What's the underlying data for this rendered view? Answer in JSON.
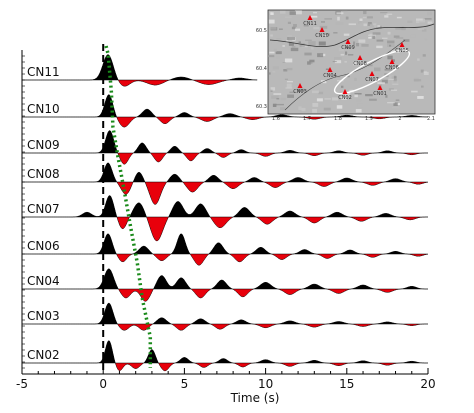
{
  "chart_data": {
    "type": "line",
    "xlabel": "Time (s)",
    "xlim": [
      -5,
      20
    ],
    "xticks": [
      -5,
      0,
      5,
      10,
      15,
      20
    ],
    "colors": {
      "positive": "#000000",
      "negative": "#e8000b",
      "s_pick": "#1a8a1a",
      "p_pick": "#000000"
    },
    "p_pick_time": 0,
    "traces": [
      {
        "station": "CN11",
        "end": 9.5,
        "amp": 0.85,
        "s_time": 0.3,
        "peaks": [
          [
            0.3,
            1.0,
            0.45
          ],
          [
            1.3,
            -0.25,
            0.5
          ],
          [
            3.2,
            -0.2,
            0.7
          ],
          [
            4.8,
            0.12,
            0.7
          ],
          [
            6.5,
            -0.18,
            0.8
          ],
          [
            8.4,
            0.08,
            0.6
          ]
        ]
      },
      {
        "station": "CN10",
        "end": 20,
        "amp": 0.75,
        "s_time": 0.5,
        "peaks": [
          [
            0.35,
            1.0,
            0.35
          ],
          [
            1.3,
            -0.45,
            0.45
          ],
          [
            2.7,
            0.35,
            0.4
          ],
          [
            3.8,
            -0.3,
            0.4
          ],
          [
            5.0,
            0.2,
            0.4
          ],
          [
            6.4,
            -0.2,
            0.5
          ],
          [
            7.8,
            0.15,
            0.5
          ],
          [
            9.2,
            -0.12,
            0.5
          ],
          [
            11.0,
            0.1,
            0.5
          ],
          [
            13.0,
            -0.1,
            0.5
          ],
          [
            15.0,
            0.08,
            0.5
          ],
          [
            17.0,
            -0.08,
            0.5
          ],
          [
            19.0,
            0.07,
            0.5
          ]
        ]
      },
      {
        "station": "CN09",
        "end": 20,
        "amp": 0.75,
        "s_time": 0.6,
        "peaks": [
          [
            0.4,
            1.0,
            0.35
          ],
          [
            1.3,
            -0.5,
            0.35
          ],
          [
            2.4,
            0.45,
            0.35
          ],
          [
            3.4,
            -0.4,
            0.35
          ],
          [
            4.4,
            0.3,
            0.35
          ],
          [
            5.4,
            -0.35,
            0.35
          ],
          [
            6.4,
            0.2,
            0.35
          ],
          [
            7.4,
            -0.2,
            0.35
          ],
          [
            8.5,
            0.15,
            0.35
          ],
          [
            10.0,
            -0.15,
            0.4
          ],
          [
            11.5,
            0.12,
            0.4
          ],
          [
            13.0,
            -0.12,
            0.4
          ],
          [
            14.5,
            0.1,
            0.4
          ],
          [
            16.0,
            -0.1,
            0.4
          ],
          [
            17.5,
            0.1,
            0.4
          ],
          [
            19.0,
            -0.08,
            0.4
          ]
        ]
      },
      {
        "station": "CN08",
        "end": 20,
        "amp": 0.75,
        "s_time": 0.9,
        "peaks": [
          [
            0.3,
            0.85,
            0.35
          ],
          [
            1.4,
            -0.55,
            0.4
          ],
          [
            2.2,
            0.45,
            0.35
          ],
          [
            3.2,
            -1.0,
            0.45
          ],
          [
            4.4,
            0.35,
            0.4
          ],
          [
            5.5,
            -0.45,
            0.45
          ],
          [
            6.8,
            0.3,
            0.4
          ],
          [
            8.0,
            -0.3,
            0.45
          ],
          [
            9.3,
            0.2,
            0.4
          ],
          [
            10.6,
            -0.25,
            0.45
          ],
          [
            12.0,
            0.2,
            0.45
          ],
          [
            13.6,
            -0.2,
            0.45
          ],
          [
            15.0,
            0.18,
            0.45
          ],
          [
            16.6,
            -0.15,
            0.45
          ],
          [
            18.0,
            0.15,
            0.45
          ],
          [
            19.4,
            -0.1,
            0.4
          ]
        ]
      },
      {
        "station": "CN07",
        "end": 20,
        "amp": 0.8,
        "s_time": 1.3,
        "peaks": [
          [
            -1.0,
            0.2,
            0.4
          ],
          [
            0.4,
            0.9,
            0.35
          ],
          [
            1.2,
            -0.5,
            0.35
          ],
          [
            2.2,
            0.6,
            0.45
          ],
          [
            3.3,
            -1.0,
            0.5
          ],
          [
            4.6,
            0.65,
            0.45
          ],
          [
            6.0,
            0.55,
            0.45
          ],
          [
            7.2,
            -0.45,
            0.5
          ],
          [
            8.7,
            0.4,
            0.45
          ],
          [
            10.1,
            -0.3,
            0.45
          ],
          [
            11.5,
            0.25,
            0.45
          ],
          [
            13.0,
            -0.25,
            0.45
          ],
          [
            14.4,
            0.2,
            0.45
          ],
          [
            15.9,
            -0.18,
            0.45
          ],
          [
            17.4,
            0.15,
            0.45
          ],
          [
            18.9,
            -0.12,
            0.45
          ]
        ]
      },
      {
        "station": "CN06",
        "end": 20,
        "amp": 0.75,
        "s_time": 1.7,
        "peaks": [
          [
            0.3,
            0.9,
            0.35
          ],
          [
            1.2,
            -0.35,
            0.35
          ],
          [
            2.5,
            0.35,
            0.4
          ],
          [
            3.6,
            -0.3,
            0.4
          ],
          [
            4.8,
            0.9,
            0.35
          ],
          [
            5.9,
            -0.5,
            0.4
          ],
          [
            7.1,
            0.5,
            0.4
          ],
          [
            8.4,
            -0.35,
            0.4
          ],
          [
            9.7,
            0.3,
            0.4
          ],
          [
            11.0,
            -0.25,
            0.4
          ],
          [
            12.4,
            0.2,
            0.4
          ],
          [
            13.8,
            -0.2,
            0.4
          ],
          [
            15.2,
            0.18,
            0.4
          ],
          [
            16.6,
            -0.15,
            0.4
          ],
          [
            18.0,
            0.12,
            0.4
          ],
          [
            19.4,
            -0.1,
            0.4
          ]
        ]
      },
      {
        "station": "CN04",
        "end": 20,
        "amp": 0.75,
        "s_time": 2.1,
        "peaks": [
          [
            0.35,
            0.9,
            0.4
          ],
          [
            1.4,
            -0.4,
            0.4
          ],
          [
            2.6,
            -0.55,
            0.4
          ],
          [
            3.6,
            0.6,
            0.4
          ],
          [
            4.8,
            0.5,
            0.4
          ],
          [
            6.0,
            -0.4,
            0.4
          ],
          [
            7.3,
            0.4,
            0.4
          ],
          [
            8.6,
            -0.35,
            0.4
          ],
          [
            10.0,
            0.3,
            0.45
          ],
          [
            11.5,
            -0.25,
            0.45
          ],
          [
            13.0,
            0.22,
            0.45
          ],
          [
            14.5,
            -0.2,
            0.45
          ],
          [
            16.0,
            0.18,
            0.45
          ],
          [
            17.5,
            -0.15,
            0.45
          ],
          [
            19.0,
            0.12,
            0.4
          ]
        ]
      },
      {
        "station": "CN03",
        "end": 20,
        "amp": 0.7,
        "s_time": 2.4,
        "peaks": [
          [
            0.35,
            1.0,
            0.35
          ],
          [
            1.3,
            -0.3,
            0.4
          ],
          [
            2.5,
            -0.3,
            0.4
          ],
          [
            3.6,
            0.3,
            0.4
          ],
          [
            4.8,
            -0.3,
            0.4
          ],
          [
            6.0,
            0.25,
            0.4
          ],
          [
            7.2,
            -0.25,
            0.4
          ],
          [
            8.5,
            0.2,
            0.4
          ],
          [
            10.0,
            -0.18,
            0.45
          ],
          [
            11.5,
            0.15,
            0.45
          ],
          [
            13.0,
            -0.15,
            0.45
          ],
          [
            14.5,
            0.12,
            0.45
          ],
          [
            16.0,
            -0.12,
            0.45
          ],
          [
            17.5,
            0.1,
            0.45
          ],
          [
            19.0,
            -0.08,
            0.4
          ]
        ]
      },
      {
        "station": "CN02",
        "end": 20,
        "amp": 0.75,
        "s_time": 2.9,
        "peaks": [
          [
            0.35,
            1.0,
            0.3
          ],
          [
            1.0,
            -0.35,
            0.3
          ],
          [
            2.0,
            -0.25,
            0.35
          ],
          [
            3.0,
            0.6,
            0.3
          ],
          [
            3.8,
            -0.35,
            0.35
          ],
          [
            5.0,
            0.25,
            0.35
          ],
          [
            6.2,
            -0.2,
            0.35
          ],
          [
            7.4,
            0.2,
            0.35
          ],
          [
            8.6,
            -0.18,
            0.35
          ],
          [
            10.0,
            0.15,
            0.4
          ],
          [
            11.5,
            -0.15,
            0.4
          ],
          [
            13.0,
            0.12,
            0.4
          ],
          [
            14.5,
            -0.12,
            0.4
          ],
          [
            16.0,
            0.1,
            0.4
          ],
          [
            17.5,
            -0.1,
            0.4
          ],
          [
            19.0,
            0.08,
            0.4
          ]
        ]
      }
    ]
  },
  "inset_map": {
    "x_ticks": [
      "1.6",
      "1.7",
      "1.8",
      "1.9",
      "2",
      "2.1"
    ],
    "y_ticks": [
      "60.5",
      "60.4",
      "60.3"
    ],
    "stations": [
      "CN11",
      "CN10",
      "CN09",
      "CN08",
      "CN07",
      "CN06",
      "CN05",
      "CN04",
      "CN03",
      "CN02",
      "CN01"
    ]
  }
}
